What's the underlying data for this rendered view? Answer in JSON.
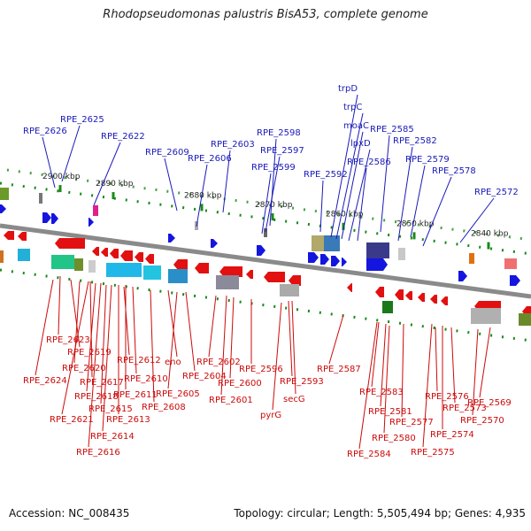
{
  "title": "Rhodopseudomonas palustris BisA53, complete genome",
  "footer": {
    "accession": "Accession: NC_008435",
    "summary": "Topology: circular; Length: 5,505,494 bp; Genes: 4,935"
  },
  "colors": {
    "forward_gene": "#1515e0",
    "reverse_gene": "#e21010",
    "forward_label": "#1a1ab8",
    "reverse_label": "#cc0a0a",
    "backbone": "#8a8a8a",
    "tick": "#1a8a1a"
  },
  "scale_ticks": [
    "2900 kbp",
    "2890 kbp",
    "2880 kbp",
    "2870 kbp",
    "2860 kbp",
    "2850 kbp",
    "2840 kbp"
  ],
  "upper_labels": [
    "RPE_2625",
    "RPE_2626",
    "RPE_2622",
    "RPE_2609",
    "RPE_2606",
    "RPE_2603",
    "RPE_2598",
    "RPE_2597",
    "RPE_2599",
    "trpD",
    "trpC",
    "moaC",
    "lpxD",
    "RPE_2592",
    "RPE_2586",
    "RPE_2585",
    "RPE_2582",
    "RPE_2579",
    "RPE_2578",
    "RPE_2572"
  ],
  "lower_labels": [
    "RPE_2623",
    "RPE_2619",
    "RPE_2620",
    "RPE_2624",
    "RPE_2617",
    "RPE_2618",
    "RPE_2621",
    "RPE_2615",
    "RPE_2614",
    "RPE_2616",
    "RPE_2612",
    "RPE_2610",
    "RPE_2611",
    "RPE_2613",
    "RPE_2608",
    "eno",
    "RPE_2605",
    "RPE_2604",
    "RPE_2602",
    "RPE_2601",
    "RPE_2600",
    "RPE_2596",
    "RPE_2593",
    "secG",
    "pyrG",
    "RPE_2587",
    "RPE_2583",
    "RPE_2581",
    "RPE_2580",
    "RPE_2584",
    "RPE_2577",
    "RPE_2576",
    "RPE_2575",
    "RPE_2574",
    "RPE_2573",
    "RPE_2570",
    "RPE_2569"
  ]
}
